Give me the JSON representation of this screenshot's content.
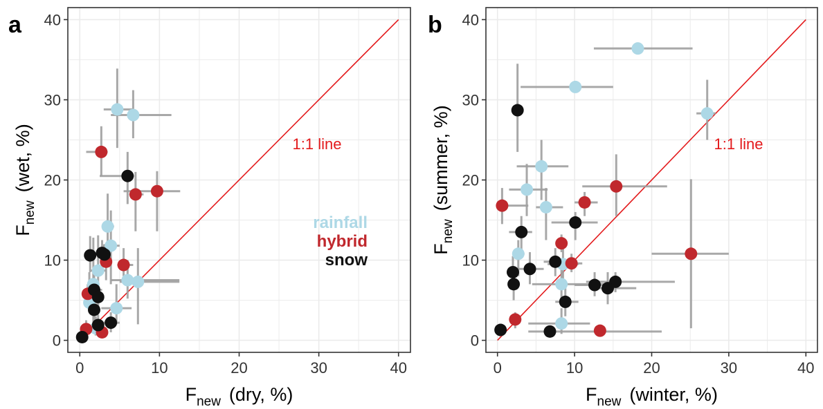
{
  "colors": {
    "rainfall": "#add8e6",
    "hybrid": "#c0282d",
    "snow": "#111111",
    "one_to_one_line": "#e31a1c",
    "error_bar": "#9e9e9e",
    "grid": "#ebebeb"
  },
  "chart_data": [
    {
      "type": "scatter",
      "panel": "a",
      "x_title": {
        "main": "F",
        "sub": "new",
        "rest": "(dry, %)"
      },
      "y_title": {
        "main": "F",
        "sub": "new",
        "rest": "(wet, %)"
      },
      "xlim": [
        -1.5,
        41.5
      ],
      "ylim": [
        -1.5,
        41.5
      ],
      "x_ticks": [
        "0",
        "10",
        "20",
        "30",
        "40"
      ],
      "y_ticks": [
        "0",
        "10",
        "20",
        "30",
        "40"
      ],
      "grid": true,
      "one_to_one_label": "1:1 line",
      "legend": [
        "rainfall",
        "hybrid",
        "snow"
      ],
      "points": [
        {
          "group": "rainfall",
          "x": 4.7,
          "y": 28.8,
          "xerr": [
            3.0,
            6.6
          ],
          "yerr": [
            24.0,
            33.9
          ]
        },
        {
          "group": "rainfall",
          "x": 6.7,
          "y": 28.1,
          "xerr": [
            3.9,
            11.5
          ],
          "yerr": [
            25.2,
            31.2
          ]
        },
        {
          "group": "rainfall",
          "x": 3.5,
          "y": 14.2,
          "xerr": [
            2.8,
            4.3
          ],
          "yerr": [
            11.0,
            18.3
          ]
        },
        {
          "group": "rainfall",
          "x": 3.9,
          "y": 11.8,
          "xerr": [
            2.9,
            5.0
          ],
          "yerr": [
            7.0,
            16.2
          ]
        },
        {
          "group": "rainfall",
          "x": 2.3,
          "y": 8.7,
          "xerr": [
            1.4,
            3.3
          ],
          "yerr": [
            4.4,
            13.1
          ]
        },
        {
          "group": "rainfall",
          "x": 1.7,
          "y": 7.0,
          "xerr": [
            1.3,
            2.0
          ],
          "yerr": [
            1.6,
            12.8
          ]
        },
        {
          "group": "rainfall",
          "x": 6.0,
          "y": 7.5,
          "xerr": [
            3.9,
            12.5
          ],
          "yerr": [
            5.2,
            10.0
          ]
        },
        {
          "group": "rainfall",
          "x": 7.3,
          "y": 7.3,
          "xerr": [
            5.0,
            12.5
          ],
          "yerr": [
            2.0,
            11.5
          ]
        },
        {
          "group": "rainfall",
          "x": 4.6,
          "y": 4.0,
          "xerr": [
            2.7,
            6.5
          ],
          "yerr": [
            2.0,
            7.0
          ]
        },
        {
          "group": "rainfall",
          "x": 1.2,
          "y": 4.7,
          "xerr": [
            0.6,
            2.2
          ],
          "yerr": [
            3.5,
            8.5
          ]
        },
        {
          "group": "rainfall",
          "x": 2.0,
          "y": 1.5,
          "xerr": [
            1.3,
            3.0
          ],
          "yerr": [
            0.6,
            3.0
          ]
        },
        {
          "group": "hybrid",
          "x": 2.7,
          "y": 23.5,
          "xerr": [
            0.8,
            3.5
          ],
          "yerr": [
            20.5,
            26.7
          ]
        },
        {
          "group": "hybrid",
          "x": 7.0,
          "y": 18.2,
          "xerr": [
            6.2,
            8.0
          ],
          "yerr": [
            13.6,
            21.0
          ]
        },
        {
          "group": "hybrid",
          "x": 9.7,
          "y": 18.6,
          "xerr": [
            5.5,
            12.6
          ],
          "yerr": [
            13.6,
            21.1
          ]
        },
        {
          "group": "hybrid",
          "x": 3.3,
          "y": 9.8,
          "xerr": [
            2.7,
            4.0
          ],
          "yerr": [
            7.5,
            12.0
          ]
        },
        {
          "group": "hybrid",
          "x": 5.5,
          "y": 9.4,
          "xerr": [
            4.7,
            6.7
          ],
          "yerr": [
            8.0,
            11.5
          ]
        },
        {
          "group": "hybrid",
          "x": 1.0,
          "y": 5.8,
          "xerr": [
            0.6,
            1.5
          ],
          "yerr": [
            4.4,
            7.0
          ]
        },
        {
          "group": "hybrid",
          "x": 0.8,
          "y": 1.4,
          "xerr": [
            0.5,
            1.2
          ],
          "yerr": [
            0.5,
            2.5
          ]
        },
        {
          "group": "hybrid",
          "x": 2.8,
          "y": 1.0,
          "xerr": [
            2.0,
            3.5
          ],
          "yerr": [
            0.4,
            1.8
          ]
        },
        {
          "group": "snow",
          "x": 6.0,
          "y": 20.5,
          "xerr": [
            2.5,
            6.8
          ],
          "yerr": [
            17.0,
            23.5
          ]
        },
        {
          "group": "snow",
          "x": 1.3,
          "y": 10.6,
          "xerr": [
            0.8,
            2.0
          ],
          "yerr": [
            8.5,
            13.0
          ]
        },
        {
          "group": "snow",
          "x": 2.8,
          "y": 10.9,
          "xerr": [
            2.0,
            3.8
          ],
          "yerr": [
            9.5,
            12.5
          ]
        },
        {
          "group": "snow",
          "x": 3.1,
          "y": 10.7,
          "xerr": [
            2.5,
            3.8
          ],
          "yerr": [
            9.7,
            12.0
          ]
        },
        {
          "group": "snow",
          "x": 1.8,
          "y": 6.3,
          "xerr": [
            1.2,
            2.8
          ],
          "yerr": [
            4.2,
            8.5
          ]
        },
        {
          "group": "snow",
          "x": 2.3,
          "y": 5.4,
          "xerr": [
            1.5,
            3.0
          ],
          "yerr": [
            3.8,
            7.0
          ]
        },
        {
          "group": "snow",
          "x": 1.8,
          "y": 3.8,
          "xerr": [
            1.2,
            2.5
          ],
          "yerr": [
            2.0,
            5.5
          ]
        },
        {
          "group": "snow",
          "x": 2.3,
          "y": 1.9,
          "xerr": [
            1.7,
            3.0
          ],
          "yerr": [
            0.6,
            3.2
          ]
        },
        {
          "group": "snow",
          "x": 3.9,
          "y": 2.2,
          "xerr": [
            3.0,
            5.0
          ],
          "yerr": [
            1.0,
            3.5
          ]
        },
        {
          "group": "snow",
          "x": 0.3,
          "y": 0.4,
          "xerr": [
            0.1,
            0.6
          ],
          "yerr": [
            0.1,
            0.8
          ]
        }
      ]
    },
    {
      "type": "scatter",
      "panel": "b",
      "x_title": {
        "main": "F",
        "sub": "new",
        "rest": "(winter, %)"
      },
      "y_title": {
        "main": "F",
        "sub": "new",
        "rest": "(summer, %)"
      },
      "xlim": [
        -1.5,
        41.5
      ],
      "ylim": [
        -1.5,
        41.5
      ],
      "x_ticks": [
        "0",
        "10",
        "20",
        "30",
        "40"
      ],
      "y_ticks": [
        "0",
        "10",
        "20",
        "30",
        "40"
      ],
      "grid": true,
      "one_to_one_label": "1:1 line",
      "points": [
        {
          "group": "rainfall",
          "x": 18.2,
          "y": 36.4,
          "xerr": [
            12.5,
            25.3
          ],
          "yerr": [
            36.4,
            36.4
          ]
        },
        {
          "group": "rainfall",
          "x": 10.1,
          "y": 31.6,
          "xerr": [
            3.0,
            15.0
          ],
          "yerr": [
            31.6,
            31.6
          ]
        },
        {
          "group": "rainfall",
          "x": 27.2,
          "y": 28.3,
          "xerr": [
            25.8,
            28.3
          ],
          "yerr": [
            25.0,
            32.5
          ]
        },
        {
          "group": "rainfall",
          "x": 5.7,
          "y": 21.7,
          "xerr": [
            2.5,
            9.2
          ],
          "yerr": [
            17.5,
            25.0
          ]
        },
        {
          "group": "rainfall",
          "x": 3.8,
          "y": 18.8,
          "xerr": [
            1.5,
            6.5
          ],
          "yerr": [
            15.5,
            22.0
          ]
        },
        {
          "group": "rainfall",
          "x": 6.3,
          "y": 16.6,
          "xerr": [
            5.0,
            8.5
          ],
          "yerr": [
            12.5,
            19.0
          ]
        },
        {
          "group": "rainfall",
          "x": 2.7,
          "y": 10.8,
          "xerr": [
            2.0,
            3.5
          ],
          "yerr": [
            8.0,
            12.5
          ]
        },
        {
          "group": "rainfall",
          "x": 8.5,
          "y": 9.5,
          "xerr": [
            6.5,
            10.5
          ],
          "yerr": [
            7.5,
            12.0
          ]
        },
        {
          "group": "rainfall",
          "x": 8.3,
          "y": 7.0,
          "xerr": [
            4.5,
            14.0
          ],
          "yerr": [
            4.5,
            10.0
          ]
        },
        {
          "group": "rainfall",
          "x": 8.3,
          "y": 2.1,
          "xerr": [
            4.0,
            12.0
          ],
          "yerr": [
            0.8,
            4.0
          ]
        },
        {
          "group": "hybrid",
          "x": 0.6,
          "y": 16.8,
          "xerr": [
            0.0,
            4.0
          ],
          "yerr": [
            14.5,
            19.0
          ]
        },
        {
          "group": "hybrid",
          "x": 15.4,
          "y": 19.2,
          "xerr": [
            11.0,
            22.0
          ],
          "yerr": [
            15.5,
            23.2
          ]
        },
        {
          "group": "hybrid",
          "x": 11.3,
          "y": 17.2,
          "xerr": [
            10.0,
            13.0
          ],
          "yerr": [
            15.5,
            18.5
          ]
        },
        {
          "group": "hybrid",
          "x": 8.3,
          "y": 12.1,
          "xerr": [
            8.0,
            8.7
          ],
          "yerr": [
            11.0,
            13.2
          ]
        },
        {
          "group": "hybrid",
          "x": 9.6,
          "y": 9.6,
          "xerr": [
            8.5,
            11.0
          ],
          "yerr": [
            8.5,
            10.8
          ]
        },
        {
          "group": "hybrid",
          "x": 25.1,
          "y": 10.8,
          "xerr": [
            20.0,
            30.0
          ],
          "yerr": [
            1.5,
            20.1
          ]
        },
        {
          "group": "hybrid",
          "x": 2.3,
          "y": 2.6,
          "xerr": [
            1.5,
            3.0
          ],
          "yerr": [
            1.5,
            3.5
          ]
        },
        {
          "group": "hybrid",
          "x": 13.3,
          "y": 1.2,
          "xerr": [
            12.5,
            14.0
          ],
          "yerr": [
            0.8,
            1.8
          ]
        },
        {
          "group": "snow",
          "x": 2.6,
          "y": 28.7,
          "xerr": [
            2.2,
            3.0
          ],
          "yerr": [
            23.5,
            34.5
          ]
        },
        {
          "group": "snow",
          "x": 3.1,
          "y": 13.5,
          "xerr": [
            1.5,
            4.5
          ],
          "yerr": [
            11.0,
            15.5
          ]
        },
        {
          "group": "snow",
          "x": 10.1,
          "y": 14.7,
          "xerr": [
            7.0,
            13.0
          ],
          "yerr": [
            12.5,
            16.0
          ]
        },
        {
          "group": "snow",
          "x": 2.0,
          "y": 8.5,
          "xerr": [
            1.5,
            2.6
          ],
          "yerr": [
            6.5,
            10.5
          ]
        },
        {
          "group": "snow",
          "x": 4.2,
          "y": 8.9,
          "xerr": [
            2.5,
            6.0
          ],
          "yerr": [
            7.0,
            11.0
          ]
        },
        {
          "group": "snow",
          "x": 7.5,
          "y": 9.8,
          "xerr": [
            6.0,
            9.0
          ],
          "yerr": [
            8.0,
            11.5
          ]
        },
        {
          "group": "snow",
          "x": 2.1,
          "y": 7.0,
          "xerr": [
            1.5,
            2.8
          ],
          "yerr": [
            5.0,
            9.0
          ]
        },
        {
          "group": "snow",
          "x": 12.6,
          "y": 6.9,
          "xerr": [
            10.0,
            15.5
          ],
          "yerr": [
            5.5,
            8.5
          ]
        },
        {
          "group": "snow",
          "x": 15.3,
          "y": 7.3,
          "xerr": [
            11.5,
            23.0
          ],
          "yerr": [
            6.0,
            8.5
          ]
        },
        {
          "group": "snow",
          "x": 14.3,
          "y": 6.5,
          "xerr": [
            12.5,
            18.0
          ],
          "yerr": [
            4.5,
            8.5
          ]
        },
        {
          "group": "snow",
          "x": 8.8,
          "y": 4.8,
          "xerr": [
            7.5,
            10.5
          ],
          "yerr": [
            3.0,
            6.5
          ]
        },
        {
          "group": "snow",
          "x": 0.4,
          "y": 1.3,
          "xerr": [
            0.1,
            0.8
          ],
          "yerr": [
            0.5,
            2.0
          ]
        },
        {
          "group": "snow",
          "x": 6.8,
          "y": 1.1,
          "xerr": [
            4.0,
            21.3
          ],
          "yerr": [
            0.5,
            1.8
          ]
        }
      ]
    }
  ]
}
